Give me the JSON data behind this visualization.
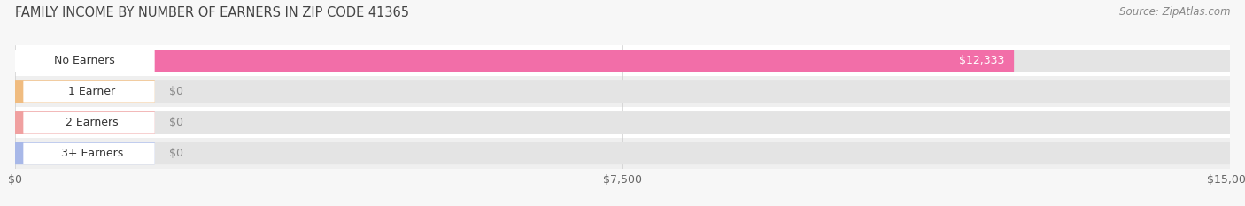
{
  "title": "FAMILY INCOME BY NUMBER OF EARNERS IN ZIP CODE 41365",
  "source": "Source: ZipAtlas.com",
  "categories": [
    "No Earners",
    "1 Earner",
    "2 Earners",
    "3+ Earners"
  ],
  "values": [
    12333,
    0,
    0,
    0
  ],
  "bar_colors": [
    "#F26EA8",
    "#F0BC80",
    "#F0A0A0",
    "#A8B8E8"
  ],
  "xlim": [
    0,
    15000
  ],
  "xticks": [
    0,
    7500,
    15000
  ],
  "xticklabels": [
    "$0",
    "$7,500",
    "$15,000"
  ],
  "bar_height": 0.72,
  "background_color": "#f7f7f7",
  "row_bg_light": "#ffffff",
  "row_bg_dark": "#efefef",
  "bar_bg_color": "#e4e4e4",
  "title_fontsize": 10.5,
  "source_fontsize": 8.5,
  "tick_fontsize": 9,
  "label_fontsize": 9,
  "figsize": [
    14.06,
    2.33
  ],
  "dpi": 100
}
